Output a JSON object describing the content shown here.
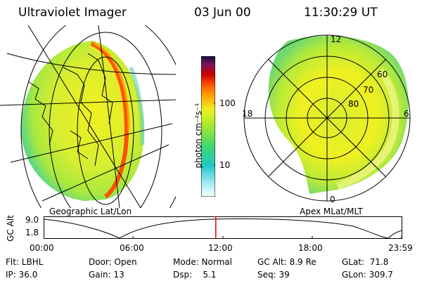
{
  "header": {
    "instrument": "Ultraviolet Imager",
    "date": "03 Jun 00",
    "time": "11:30:29 UT"
  },
  "left_panel": {
    "caption": "Geographic Lat/Lon"
  },
  "right_panel": {
    "caption": "Apex MLat/MLT",
    "mlt_labels": {
      "top": "12",
      "left": "18",
      "right": "6",
      "bottom": "0"
    },
    "lat_labels": [
      "60",
      "70",
      "80"
    ]
  },
  "colorbar": {
    "unit_label": "photon cm⁻²s⁻¹",
    "ticks": [
      "100",
      "10"
    ],
    "scale": "log",
    "colors": [
      "#ffffff",
      "#a0e8f0",
      "#20c8c8",
      "#40d870",
      "#a0e830",
      "#f0f020",
      "#ffa000",
      "#ff5000",
      "#c80000",
      "#801060",
      "#101040"
    ]
  },
  "timeline": {
    "ylabel": "GC Alt",
    "ytick_top": "9.0",
    "ytick_bottom": "1.8",
    "xticks": [
      "00:00",
      "06:00",
      "12:00",
      "18:00",
      "23:59"
    ],
    "current_time_fraction": 0.48,
    "marker_color": "#e00000"
  },
  "info": {
    "filter": "Flt: LBHL",
    "ip": "IP: 36.0",
    "door": "Door: Open",
    "gain": "Gain: 13",
    "mode": "Mode: Normal",
    "dsp": "Dsp:    5.1",
    "gc_alt": "GC Alt: 8.9 Re",
    "seq": "Seq: 39",
    "glat": "GLat:  71.8",
    "glon": "GLon: 309.7"
  }
}
